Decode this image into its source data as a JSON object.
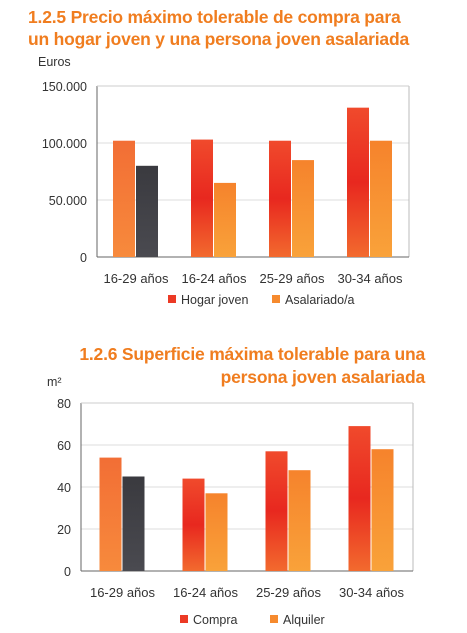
{
  "chart_data": [
    {
      "type": "bar",
      "title_line1": "1.2.5 Precio máximo tolerable de compra  para",
      "title_line2": "un hogar joven y una persona joven asalariada",
      "ylabel": "Euros",
      "categories": [
        "16-29 años",
        "16-24 años",
        "25-29 años",
        "30-34 años"
      ],
      "ylim": [
        0,
        150000
      ],
      "yticks": [
        0,
        50000,
        100000,
        150000
      ],
      "ytick_labels": [
        "0",
        "50.000",
        "100.000",
        "150.000"
      ],
      "grid": true,
      "legend_position": "bottom",
      "series": [
        {
          "name": "Hogar joven",
          "values": [
            102000,
            103000,
            102000,
            131000
          ]
        },
        {
          "name": "Asalariado/a",
          "values": [
            80000,
            65000,
            85000,
            102000
          ]
        }
      ]
    },
    {
      "type": "bar",
      "title_line1": "1.2.6 Superficie máxima tolerable para una",
      "title_line2": "persona joven asalariada",
      "ylabel": "m²",
      "categories": [
        "16-29 años",
        "16-24 años",
        "25-29 años",
        "30-34 años"
      ],
      "ylim": [
        0,
        80
      ],
      "yticks": [
        0,
        20,
        40,
        60,
        80
      ],
      "ytick_labels": [
        "0",
        "20",
        "40",
        "60",
        "80"
      ],
      "grid": true,
      "legend_position": "bottom",
      "series": [
        {
          "name": "Compra",
          "values": [
            54,
            44,
            57,
            69
          ]
        },
        {
          "name": "Alquiler",
          "values": [
            45,
            37,
            48,
            58
          ]
        }
      ]
    }
  ],
  "colors": {
    "title": "#f07d1f",
    "first_group_series_1": "#f57a33",
    "first_group_series_2": "#3b3b40",
    "series_1": "#ec3a25",
    "series_2": "#f68a2e",
    "axis": "#666666",
    "grid": "#dddddd"
  }
}
